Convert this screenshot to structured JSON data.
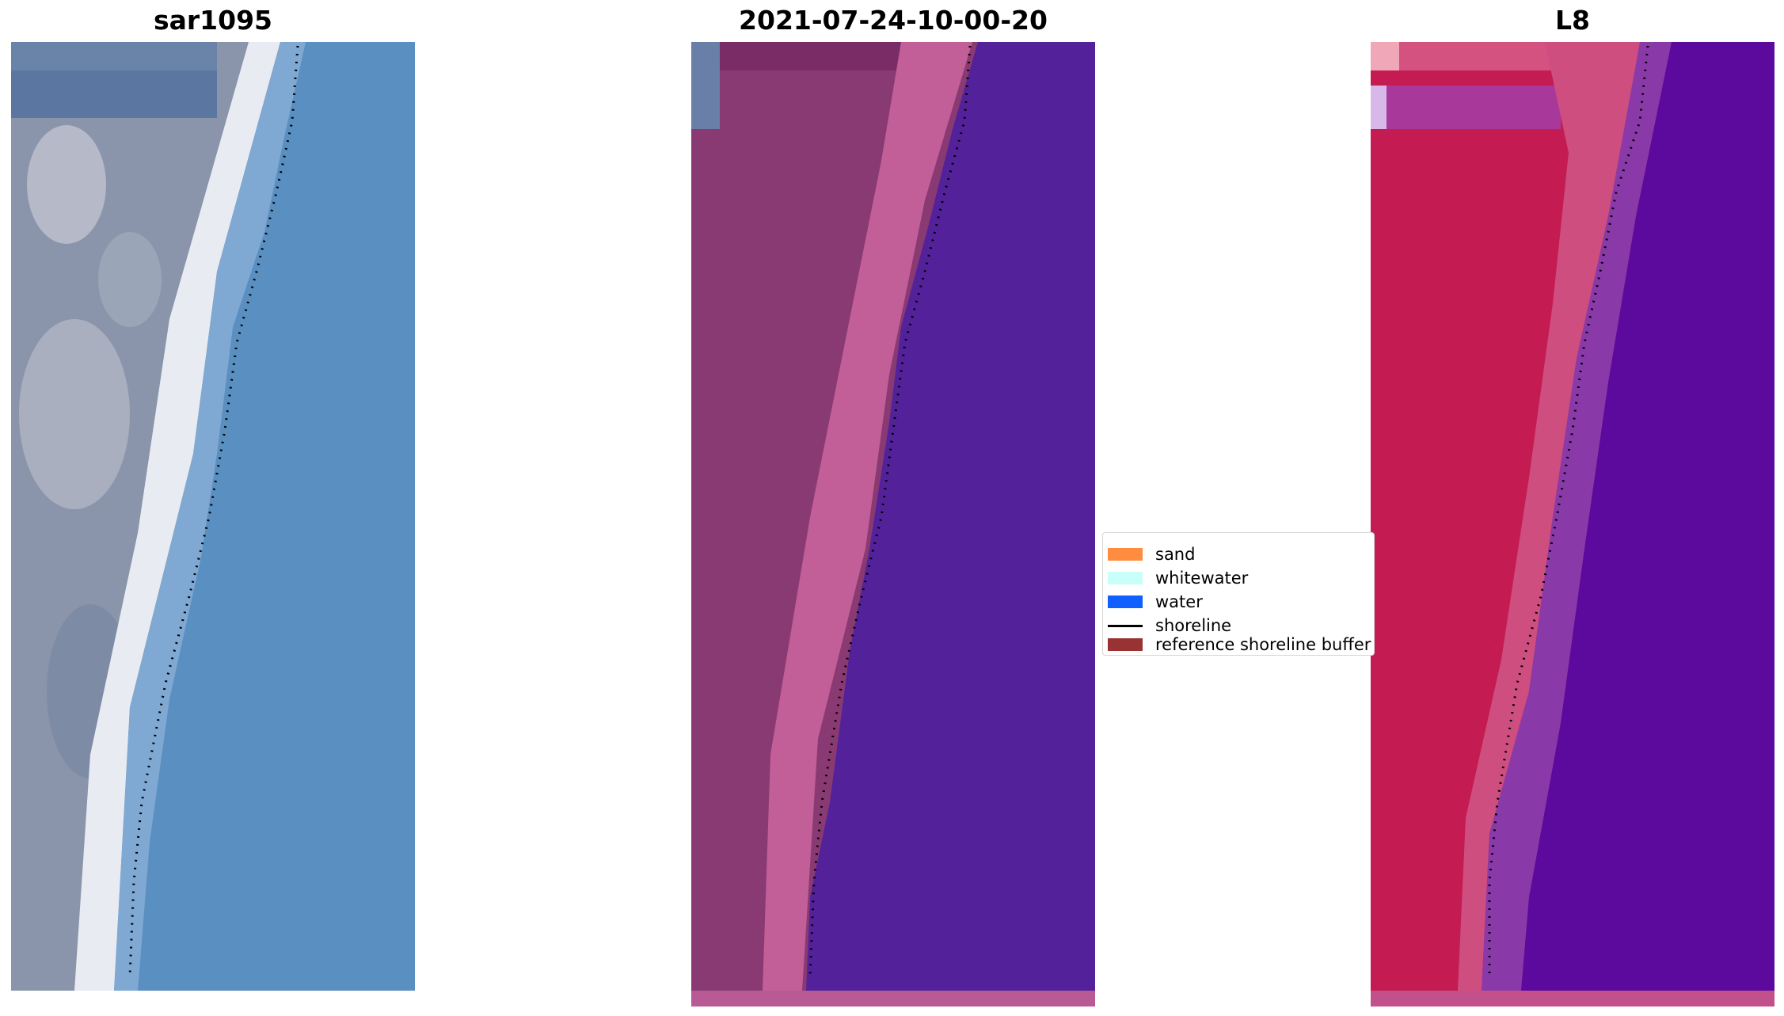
{
  "panels": [
    {
      "title": "sar1095",
      "kind": "rgb"
    },
    {
      "title": "2021-07-24-10-00-20",
      "kind": "classified"
    },
    {
      "title": "L8",
      "kind": "falsecolor"
    }
  ],
  "legend": {
    "items": [
      {
        "label": "sand",
        "type": "patch",
        "color": "#ff8c3f"
      },
      {
        "label": "whitewater",
        "type": "patch",
        "color": "#c8fff8"
      },
      {
        "label": "water",
        "type": "patch",
        "color": "#1060ff"
      },
      {
        "label": "shoreline",
        "type": "line",
        "color": "#000000"
      },
      {
        "label": "reference shoreline buffer",
        "type": "patch",
        "color": "#993333"
      }
    ]
  },
  "colors": {
    "rgb_land": "#8a95ab",
    "rgb_sand": "#e8ecf2",
    "rgb_water": "#5a8fc2",
    "classified_land": "#8a3a72",
    "classified_beach": "#c25e98",
    "classified_water": "#53229a",
    "falsecolor_land": "#c41c52",
    "falsecolor_beach": "#cf4e80",
    "falsecolor_water": "#5c0a9e",
    "shoreline": "#000000"
  }
}
